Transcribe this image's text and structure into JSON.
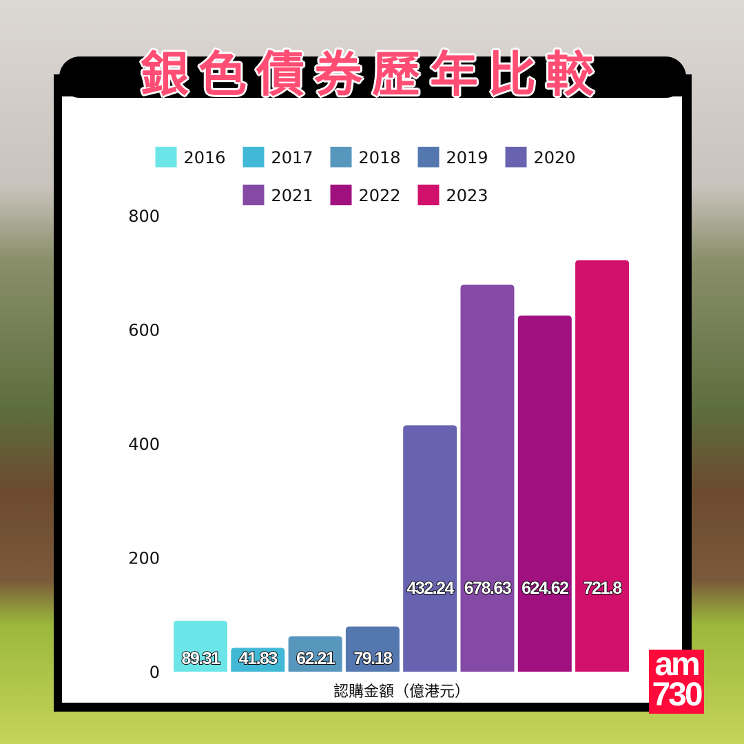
{
  "title": "銀色債券歷年比較",
  "logo": "am730",
  "chart_data": {
    "type": "bar",
    "title": "銀色債券歷年比較",
    "xlabel": "認購金額（億港元）",
    "ylabel": "",
    "ylim": [
      0,
      800
    ],
    "yticks": [
      0,
      200,
      400,
      600,
      800
    ],
    "grid": false,
    "legend_placement": "top",
    "categories": [
      "2016",
      "2017",
      "2018",
      "2019",
      "2020",
      "2021",
      "2022",
      "2023"
    ],
    "values": [
      89.31,
      41.83,
      62.21,
      79.18,
      432.24,
      678.63,
      624.62,
      721.8
    ],
    "value_labels": [
      "89.31",
      "41.83",
      "62.21",
      "79.18",
      "432.24",
      "678.63",
      "624.62",
      "721.8"
    ],
    "colors": [
      "#6ce5e8",
      "#41b8d5",
      "#5897bd",
      "#5477b0",
      "#6763b0",
      "#8549a6",
      "#a0117f",
      "#d1106b"
    ]
  }
}
